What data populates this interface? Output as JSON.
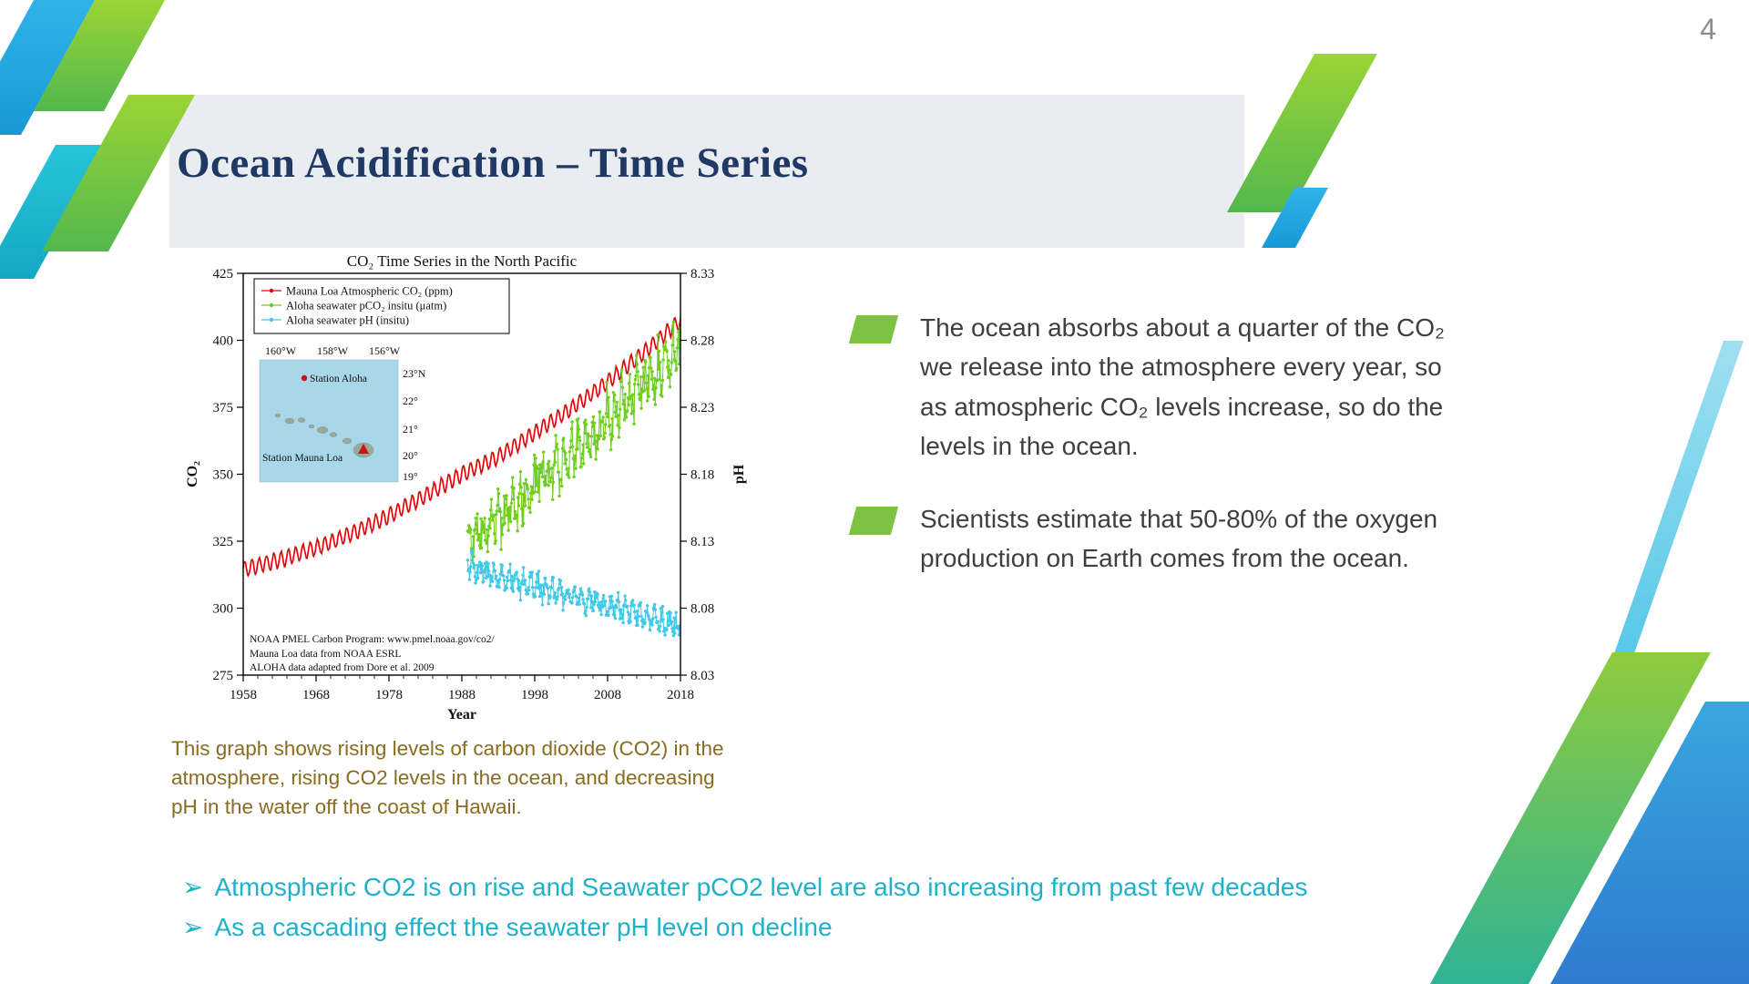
{
  "slide": {
    "page_number": "4",
    "title": "Ocean Acidification – Time Series"
  },
  "palette": {
    "title_navy": "#1F3864",
    "body_text": "#3F3F3F",
    "caption_brown": "#8A6B1F",
    "takeaway_teal": "#1FB1C9",
    "bullet_green": "#7DC242",
    "header_band": "#E9EDF1",
    "page_number_gray": "#8C8C8C"
  },
  "bullets": {
    "items": [
      {
        "text": "The ocean absorbs about a quarter of the CO₂ we release into the atmosphere every year, so as atmospheric CO₂ levels increase, so do the levels in the ocean."
      },
      {
        "text": "Scientists estimate that 50-80% of the oxygen production on Earth comes from the ocean."
      }
    ]
  },
  "caption": {
    "text": "This graph shows rising levels of carbon dioxide (CO2) in the atmosphere, rising CO2 levels in the ocean, and decreasing pH in the water off the coast of Hawaii."
  },
  "takeaways": {
    "bullet_glyph": "➢",
    "items": [
      {
        "text": "Atmospheric CO2 is on rise and Seawater pCO2 level are also increasing from past few decades"
      },
      {
        "text": "As a cascading effect the seawater pH level on decline"
      }
    ]
  },
  "chart_data": {
    "type": "line",
    "title": "CO₂ Time Series in the North Pacific",
    "xlabel": "Year",
    "ylabel_left": "CO₂",
    "ylabel_right": "pH",
    "xlim": [
      1958,
      2018
    ],
    "x_ticks": [
      1958,
      1968,
      1978,
      1988,
      1998,
      2008,
      2018
    ],
    "ylim_left": [
      275,
      425
    ],
    "y_ticks_left": [
      275,
      300,
      325,
      350,
      375,
      400,
      425
    ],
    "ylim_right": [
      8.03,
      8.33
    ],
    "y_ticks_right": [
      8.03,
      8.08,
      8.13,
      8.18,
      8.23,
      8.28,
      8.33
    ],
    "grid": false,
    "legend_position": "top-left",
    "noise_seed": 7,
    "series": [
      {
        "name": "Mauna Loa Atmospheric CO₂ (ppm)",
        "color": "#E8000B",
        "axis": "left",
        "style": "seasonal-line",
        "x_range": [
          1958,
          2018.2
        ],
        "trend": [
          [
            1958,
            314.5
          ],
          [
            1963,
            318
          ],
          [
            1968,
            322.5
          ],
          [
            1973,
            328
          ],
          [
            1978,
            334.5
          ],
          [
            1983,
            342
          ],
          [
            1988,
            350
          ],
          [
            1993,
            356.5
          ],
          [
            1998,
            365.5
          ],
          [
            2003,
            374.5
          ],
          [
            2008,
            384.5
          ],
          [
            2013,
            395.5
          ],
          [
            2018.2,
            408
          ]
        ],
        "seasonal_amplitude": 2.8,
        "seasonal_phase": 0.3,
        "noise": 0.5
      },
      {
        "name": "Aloha seawater pCO₂ insitu (μatm)",
        "color": "#6FCE1F",
        "axis": "left",
        "style": "scatter-line",
        "x_range": [
          1988.8,
          2017.9
        ],
        "trend": [
          [
            1988.8,
            324
          ],
          [
            1992,
            331
          ],
          [
            1996,
            342
          ],
          [
            2000,
            351
          ],
          [
            2004,
            361
          ],
          [
            2008,
            370
          ],
          [
            2012,
            381
          ],
          [
            2016,
            391
          ],
          [
            2017.9,
            396
          ]
        ],
        "seasonal_amplitude": 6,
        "seasonal_phase": 1.8,
        "noise": 11
      },
      {
        "name": "Aloha seawater pH (insitu)",
        "color": "#41C9E8",
        "axis": "right",
        "style": "scatter-line",
        "x_range": [
          1988.8,
          2017.9
        ],
        "trend": [
          [
            1988.8,
            8.112
          ],
          [
            1992,
            8.106
          ],
          [
            1996,
            8.1
          ],
          [
            2000,
            8.094
          ],
          [
            2004,
            8.088
          ],
          [
            2008,
            8.082
          ],
          [
            2012,
            8.076
          ],
          [
            2016,
            8.069
          ],
          [
            2017.9,
            8.066
          ]
        ],
        "seasonal_amplitude": 0.006,
        "seasonal_phase": 4.94,
        "noise": 0.009
      }
    ],
    "source_lines": [
      "NOAA PMEL Carbon Program: www.pmel.noaa.gov/co2/",
      "Mauna Loa data from NOAA ESRL",
      "ALOHA data adapted from Dore et al. 2009"
    ],
    "inset_map": {
      "lon_labels": [
        "160°W",
        "158°W",
        "156°W"
      ],
      "lat_labels": [
        "23°N",
        "22°",
        "21°",
        "20°",
        "19°"
      ],
      "station_aloha_label": "Station Aloha",
      "station_mauna_loa_label": "Station Mauna Loa"
    }
  }
}
